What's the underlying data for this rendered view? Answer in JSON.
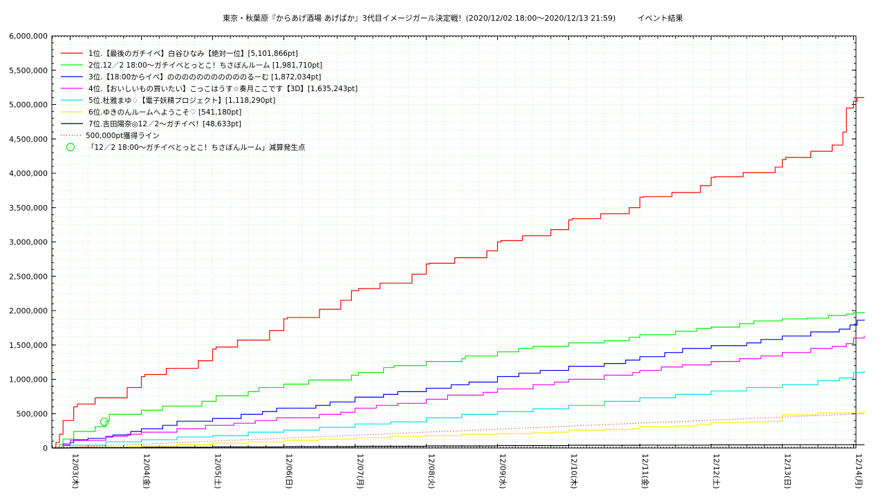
{
  "chart_data": {
    "type": "line",
    "title": "東京・秋葉原『からあげ酒場 あげぱか』3代目イメージガール決定戦！(2020/12/02 18:00〜2020/12/13 21:59)         イベント結果",
    "xlabel": "",
    "ylabel": "",
    "ylim": [
      0,
      6000000
    ],
    "xlim": [
      0,
      11.25
    ],
    "x_tick_labels": [
      "12/03(木)",
      "12/04(金)",
      "12/05(土)",
      "12/06(日)",
      "12/07(月)",
      "12/08(火)",
      "12/09(水)",
      "12/10(木)",
      "12/11(金)",
      "12/12(土)",
      "12/13(日)",
      "12/14(月)"
    ],
    "y_tick_labels": [
      "0",
      "500,000",
      "1,000,000",
      "1,500,000",
      "2,000,000",
      "2,500,000",
      "3,000,000",
      "3,500,000",
      "4,000,000",
      "4,500,000",
      "5,000,000",
      "5,500,000",
      "6,000,000"
    ],
    "y_ticks": [
      0,
      500000,
      1000000,
      1500000,
      2000000,
      2500000,
      3000000,
      3500000,
      4000000,
      4500000,
      5000000,
      5500000,
      6000000
    ],
    "grid": true,
    "legend_position": "top-left",
    "series": [
      {
        "name": "1位.【最後のガチイベ】白谷ひなみ【絶対一位】[5,101,866pt]",
        "color": "#ff0000",
        "style": "solid",
        "x": [
          -0.25,
          -0.2,
          -0.15,
          -0.1,
          0.0,
          0.05,
          0.1,
          0.35,
          0.8,
          1.0,
          1.05,
          1.35,
          1.8,
          2.0,
          2.05,
          2.35,
          2.8,
          3.0,
          3.05,
          3.5,
          3.8,
          3.95,
          4.05,
          4.35,
          4.8,
          5.0,
          5.05,
          5.4,
          5.85,
          6.0,
          6.05,
          6.35,
          6.75,
          7.0,
          7.05,
          7.45,
          7.85,
          8.0,
          8.05,
          8.45,
          8.85,
          9.0,
          9.05,
          9.45,
          9.9,
          10.0,
          10.05,
          10.4,
          10.7,
          10.85,
          10.9,
          11.0,
          11.05,
          11.15
        ],
        "values": [
          0,
          80000,
          200000,
          400000,
          400000,
          600000,
          640000,
          730000,
          880000,
          1040000,
          1070000,
          1160000,
          1270000,
          1440000,
          1470000,
          1570000,
          1710000,
          1880000,
          1900000,
          2020000,
          2150000,
          2290000,
          2320000,
          2400000,
          2530000,
          2680000,
          2690000,
          2770000,
          2870000,
          3000000,
          3020000,
          3090000,
          3180000,
          3320000,
          3340000,
          3410000,
          3500000,
          3650000,
          3660000,
          3720000,
          3820000,
          3940000,
          3950000,
          4010000,
          4090000,
          4200000,
          4230000,
          4320000,
          4410000,
          4600000,
          4950000,
          5050000,
          5101866,
          5101866
        ]
      },
      {
        "name": "2位.12／2 18:00〜ガチイベとっとこ！ちさぼんルーム [1,981,710pt]",
        "color": "#00ee00",
        "style": "solid",
        "x": [
          -0.25,
          -0.15,
          -0.1,
          0.05,
          0.35,
          0.5,
          0.55,
          1.0,
          1.3,
          1.85,
          2.05,
          2.5,
          2.65,
          3.0,
          3.35,
          3.95,
          4.05,
          4.4,
          4.55,
          5.0,
          5.5,
          5.55,
          6.0,
          6.3,
          6.5,
          7.0,
          7.5,
          7.85,
          8.0,
          8.5,
          8.8,
          9.0,
          9.4,
          9.6,
          10.0,
          10.35,
          10.65,
          10.9,
          11.0,
          11.15
        ],
        "values": [
          0,
          50000,
          130000,
          240000,
          310000,
          390000,
          490000,
          550000,
          610000,
          680000,
          760000,
          820000,
          880000,
          930000,
          990000,
          1060000,
          1100000,
          1170000,
          1200000,
          1260000,
          1300000,
          1340000,
          1400000,
          1450000,
          1480000,
          1530000,
          1560000,
          1610000,
          1650000,
          1700000,
          1740000,
          1760000,
          1810000,
          1850000,
          1880000,
          1890000,
          1930000,
          1950000,
          1970000,
          1981710
        ]
      },
      {
        "name": "3位.【18:00からイベ】のののののののののののるーむ [1,872,034pt]",
        "color": "#0000ff",
        "style": "solid",
        "x": [
          -0.25,
          -0.1,
          0.0,
          0.05,
          0.25,
          0.5,
          0.6,
          0.85,
          1.0,
          1.3,
          1.5,
          2.0,
          2.4,
          2.7,
          2.9,
          3.45,
          3.65,
          4.0,
          4.4,
          4.6,
          5.0,
          5.35,
          5.6,
          6.0,
          6.3,
          6.6,
          7.0,
          7.5,
          7.8,
          8.0,
          8.35,
          8.6,
          9.0,
          9.5,
          9.7,
          10.0,
          10.4,
          10.8,
          10.95,
          11.05,
          11.15
        ],
        "values": [
          0,
          40000,
          80000,
          120000,
          140000,
          160000,
          190000,
          240000,
          280000,
          330000,
          390000,
          430000,
          490000,
          530000,
          580000,
          620000,
          670000,
          740000,
          780000,
          820000,
          870000,
          920000,
          960000,
          1040000,
          1090000,
          1130000,
          1190000,
          1230000,
          1280000,
          1330000,
          1390000,
          1450000,
          1490000,
          1530000,
          1580000,
          1630000,
          1690000,
          1730000,
          1790000,
          1860000,
          1872034
        ]
      },
      {
        "name": "4位.【おいしいもの買いたい】こっこはうす☆奏月ここです【3D】[1,635,243pt]",
        "color": "#ff00ff",
        "style": "solid",
        "x": [
          -0.25,
          -0.1,
          0.0,
          0.5,
          0.8,
          1.0,
          1.5,
          1.9,
          2.3,
          2.6,
          2.9,
          3.5,
          3.8,
          4.0,
          4.3,
          4.6,
          5.0,
          5.3,
          5.8,
          6.0,
          6.5,
          6.8,
          7.0,
          7.5,
          7.9,
          8.0,
          8.3,
          8.6,
          9.0,
          9.4,
          9.7,
          10.0,
          10.4,
          10.7,
          10.9,
          11.0,
          11.15
        ],
        "values": [
          0,
          60000,
          110000,
          170000,
          200000,
          230000,
          280000,
          330000,
          360000,
          400000,
          440000,
          490000,
          520000,
          580000,
          620000,
          650000,
          710000,
          770000,
          810000,
          860000,
          920000,
          960000,
          1000000,
          1060000,
          1100000,
          1130000,
          1180000,
          1210000,
          1260000,
          1300000,
          1340000,
          1390000,
          1450000,
          1480000,
          1520000,
          1600000,
          1635243
        ]
      },
      {
        "name": "5位.杜雅まゆ♢【電子妖精プロジェクト】[1,118,290pt]",
        "color": "#00e0e0",
        "style": "solid",
        "x": [
          -0.25,
          0.0,
          0.5,
          1.0,
          1.5,
          2.0,
          2.5,
          3.0,
          3.5,
          4.0,
          4.5,
          5.0,
          5.5,
          6.0,
          6.5,
          7.0,
          7.5,
          8.0,
          8.5,
          9.0,
          9.5,
          10.0,
          10.5,
          10.8,
          11.0,
          11.15
        ],
        "values": [
          0,
          40000,
          90000,
          120000,
          160000,
          180000,
          230000,
          260000,
          300000,
          350000,
          380000,
          440000,
          490000,
          530000,
          570000,
          620000,
          680000,
          730000,
          780000,
          830000,
          880000,
          920000,
          980000,
          1020000,
          1100000,
          1118290
        ]
      },
      {
        "name": "6位.ゆきのんルームへようこそ♡ [541,180pt]",
        "color": "#ffee00",
        "style": "solid",
        "x": [
          -0.25,
          0.0,
          0.8,
          1.0,
          1.5,
          2.0,
          2.5,
          3.0,
          3.5,
          4.0,
          4.5,
          5.0,
          5.5,
          6.0,
          6.5,
          6.8,
          7.0,
          7.5,
          7.9,
          8.0,
          8.5,
          8.8,
          9.0,
          9.5,
          9.8,
          10.0,
          10.5,
          11.15
        ],
        "values": [
          0,
          10000,
          20000,
          30000,
          50000,
          70000,
          90000,
          110000,
          130000,
          150000,
          170000,
          180000,
          200000,
          210000,
          220000,
          230000,
          260000,
          270000,
          280000,
          310000,
          320000,
          340000,
          370000,
          380000,
          390000,
          480000,
          510000,
          541180
        ]
      },
      {
        "name": "7位.吉田陽奈◎12／2〜ガチイベ！[48,633pt]",
        "color": "#000000",
        "style": "solid",
        "x": [
          -0.25,
          0.0,
          1.0,
          2.0,
          3.0,
          4.0,
          5.0,
          6.0,
          7.0,
          8.0,
          9.0,
          10.0,
          11.15
        ],
        "values": [
          0,
          5000,
          10000,
          15000,
          20000,
          25000,
          30000,
          35000,
          40000,
          42000,
          45000,
          47000,
          48633
        ]
      },
      {
        "name": "500,000pt獲得ライン",
        "color": "#cc0000",
        "style": "dotted",
        "x": [
          -0.25,
          11.15
        ],
        "values": [
          0,
          500000
        ]
      }
    ],
    "markers": [
      {
        "name": "「12／2 18:00〜ガチイベとっとこ！ちさぼんルーム」減算発生点",
        "color": "#00ee00",
        "x": 0.48,
        "value": 380000
      }
    ]
  }
}
